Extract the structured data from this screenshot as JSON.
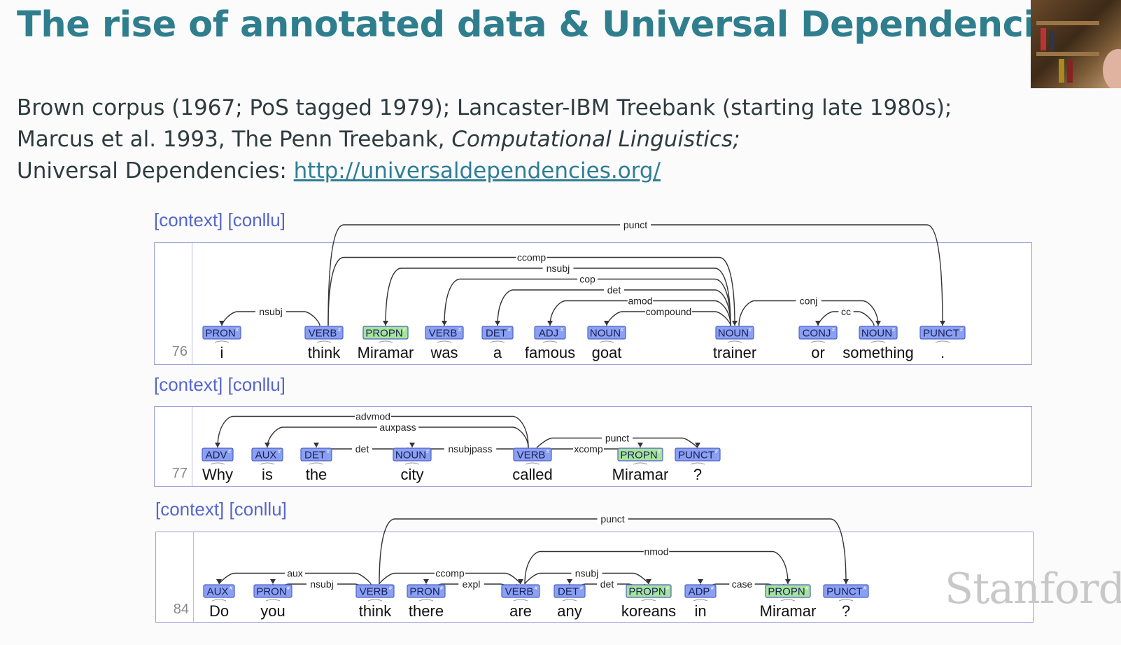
{
  "slide": {
    "title": "The rise of annotated data & Universal Dependencies tree",
    "intro": {
      "line1": "Brown corpus (1967; PoS tagged 1979); Lancaster-IBM Treebank (starting late 1980s);",
      "line2_plain": "Marcus et al. 1993, The Penn Treebank, ",
      "line2_italic": "Computational Linguistics;",
      "line3_plain": "Universal Dependencies: ",
      "line3_link": "http://universaldependencies.org/"
    },
    "watermark": "Stanford"
  },
  "colors": {
    "pos_tag": "#8aa0f2",
    "propn_tag": "#a6e39b",
    "tag_border": "#4e61c7",
    "arc": "#333333"
  },
  "sentences": [
    {
      "number": "76",
      "links": [
        "[context]",
        "[conllu]"
      ],
      "tokens": [
        {
          "word": "i",
          "tag": "PRON"
        },
        {
          "word": "think",
          "tag": "VERB"
        },
        {
          "word": "Miramar",
          "tag": "PROPN"
        },
        {
          "word": "was",
          "tag": "VERB"
        },
        {
          "word": "a",
          "tag": "DET"
        },
        {
          "word": "famous",
          "tag": "ADJ"
        },
        {
          "word": "goat",
          "tag": "NOUN"
        },
        {
          "word": "trainer",
          "tag": "NOUN"
        },
        {
          "word": "or",
          "tag": "CONJ"
        },
        {
          "word": "something",
          "tag": "NOUN"
        },
        {
          "word": ".",
          "tag": "PUNCT"
        }
      ],
      "arcs": [
        {
          "head": 1,
          "dep": 0,
          "label": "nsubj"
        },
        {
          "head": 1,
          "dep": 10,
          "label": "punct"
        },
        {
          "head": 1,
          "dep": 7,
          "label": "ccomp"
        },
        {
          "head": 7,
          "dep": 2,
          "label": "nsubj"
        },
        {
          "head": 7,
          "dep": 3,
          "label": "cop"
        },
        {
          "head": 7,
          "dep": 4,
          "label": "det"
        },
        {
          "head": 7,
          "dep": 5,
          "label": "amod"
        },
        {
          "head": 7,
          "dep": 6,
          "label": "compound"
        },
        {
          "head": 9,
          "dep": 8,
          "label": "cc"
        },
        {
          "head": 7,
          "dep": 9,
          "label": "conj"
        }
      ]
    },
    {
      "number": "77",
      "links": [
        "[context]",
        "[conllu]"
      ],
      "tokens": [
        {
          "word": "Why",
          "tag": "ADV"
        },
        {
          "word": "is",
          "tag": "AUX"
        },
        {
          "word": "the",
          "tag": "DET"
        },
        {
          "word": "city",
          "tag": "NOUN"
        },
        {
          "word": "called",
          "tag": "VERB"
        },
        {
          "word": "Miramar",
          "tag": "PROPN"
        },
        {
          "word": "?",
          "tag": "PUNCT"
        }
      ],
      "arcs": [
        {
          "head": 4,
          "dep": 0,
          "label": "advmod"
        },
        {
          "head": 4,
          "dep": 1,
          "label": "auxpass"
        },
        {
          "head": 3,
          "dep": 2,
          "label": "det"
        },
        {
          "head": 4,
          "dep": 3,
          "label": "nsubjpass"
        },
        {
          "head": 4,
          "dep": 5,
          "label": "xcomp"
        },
        {
          "head": 4,
          "dep": 6,
          "label": "punct"
        }
      ]
    },
    {
      "number": "84",
      "links": [
        "[context]",
        "[conllu]"
      ],
      "tokens": [
        {
          "word": "Do",
          "tag": "AUX"
        },
        {
          "word": "you",
          "tag": "PRON"
        },
        {
          "word": "think",
          "tag": "VERB"
        },
        {
          "word": "there",
          "tag": "PRON"
        },
        {
          "word": "are",
          "tag": "VERB"
        },
        {
          "word": "any",
          "tag": "DET"
        },
        {
          "word": "koreans",
          "tag": "PROPN"
        },
        {
          "word": "in",
          "tag": "ADP"
        },
        {
          "word": "Miramar",
          "tag": "PROPN"
        },
        {
          "word": "?",
          "tag": "PUNCT"
        }
      ],
      "arcs": [
        {
          "head": 2,
          "dep": 0,
          "label": "aux"
        },
        {
          "head": 2,
          "dep": 1,
          "label": "nsubj"
        },
        {
          "head": 2,
          "dep": 9,
          "label": "punct"
        },
        {
          "head": 2,
          "dep": 4,
          "label": "ccomp"
        },
        {
          "head": 4,
          "dep": 3,
          "label": "expl"
        },
        {
          "head": 4,
          "dep": 6,
          "label": "nsubj"
        },
        {
          "head": 6,
          "dep": 5,
          "label": "det"
        },
        {
          "head": 4,
          "dep": 8,
          "label": "nmod"
        },
        {
          "head": 8,
          "dep": 7,
          "label": "case"
        }
      ]
    }
  ]
}
